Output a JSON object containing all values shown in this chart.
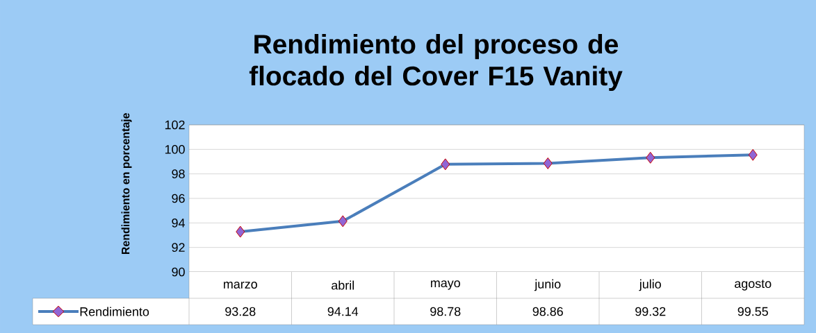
{
  "chart_data": {
    "type": "line",
    "title": "Rendimiento del proceso de flocado del Cover F15 Vanity",
    "ylabel": "Rendimiento en porcentaje",
    "categories": [
      "marzo",
      "abril",
      "mayo",
      "junio",
      "julio",
      "agosto"
    ],
    "series": [
      {
        "name": "Rendimiento",
        "color": "#4a7ebb",
        "values": [
          93.28,
          94.14,
          98.78,
          98.86,
          99.32,
          99.55
        ]
      }
    ],
    "ylim": [
      90,
      102
    ],
    "yticks": [
      90,
      92,
      94,
      96,
      98,
      100,
      102
    ],
    "grid": "y",
    "marker": "diamond",
    "line_style": "solid",
    "data_labels": true,
    "legend": "bottom left"
  }
}
